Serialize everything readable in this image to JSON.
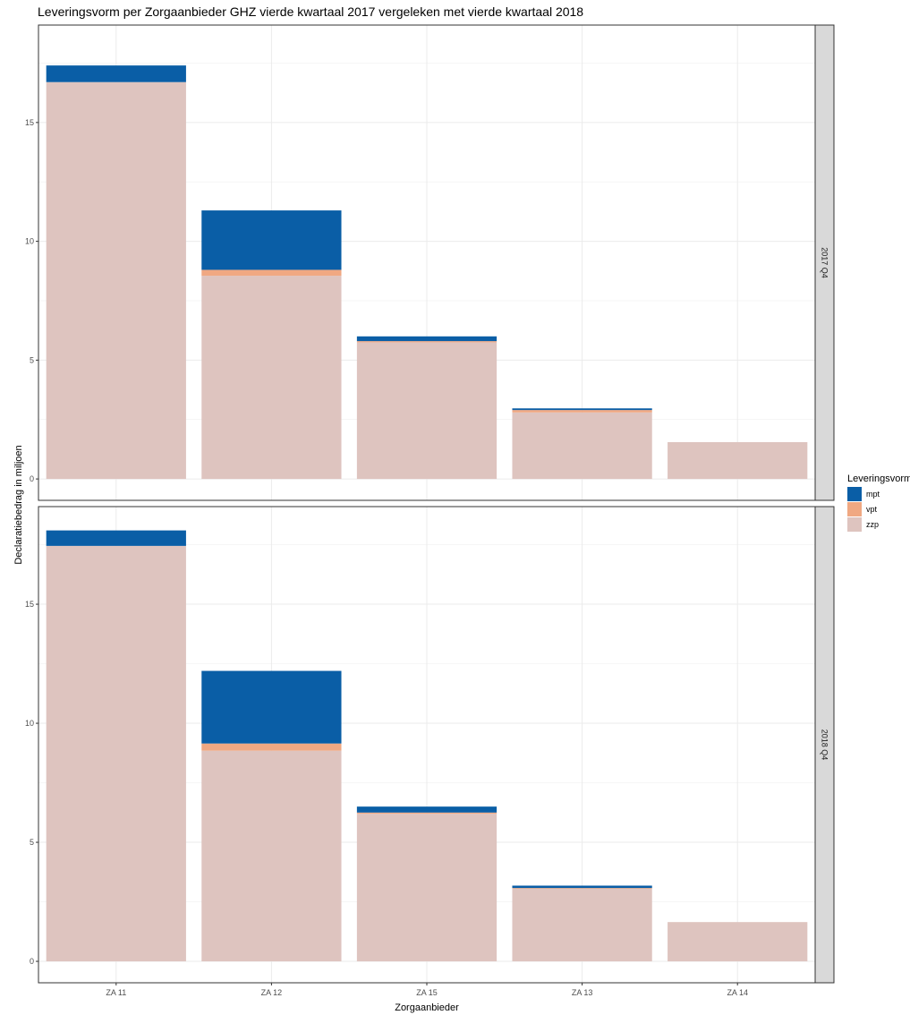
{
  "chart_data": {
    "type": "bar",
    "stacked": true,
    "title": "Leveringsvorm per Zorgaanbieder GHZ vierde kwartaal 2017 vergeleken met vierde kwartaal 2018",
    "xlabel": "Zorgaanbieder",
    "ylabel": "Declaratiebedrag in miljoen",
    "categories": [
      "ZA 11",
      "ZA 12",
      "ZA 15",
      "ZA 13",
      "ZA 14"
    ],
    "yticks": [
      0,
      5,
      10,
      15
    ],
    "ylim": [
      -0.9,
      19.1
    ],
    "grid": true,
    "legend": {
      "title": "Leveringsvorm",
      "position": "right",
      "items": [
        {
          "label": "mpt",
          "color": "#0a5ea6"
        },
        {
          "label": "vpt",
          "color": "#f0a882"
        },
        {
          "label": "zzp",
          "color": "#dec4bf"
        }
      ]
    },
    "panels": [
      {
        "label": "2017 Q4",
        "series": [
          {
            "name": "zzp",
            "color": "#dec4bf",
            "values": [
              16.7,
              8.55,
              5.75,
              2.8,
              1.55
            ]
          },
          {
            "name": "vpt",
            "color": "#f0a882",
            "values": [
              0.0,
              0.25,
              0.05,
              0.1,
              0.0
            ]
          },
          {
            "name": "mpt",
            "color": "#0a5ea6",
            "values": [
              0.7,
              2.5,
              0.2,
              0.07,
              0.0
            ]
          }
        ]
      },
      {
        "label": "2018 Q4",
        "series": [
          {
            "name": "zzp",
            "color": "#dec4bf",
            "values": [
              17.45,
              8.85,
              6.2,
              3.05,
              1.65
            ]
          },
          {
            "name": "vpt",
            "color": "#f0a882",
            "values": [
              0.0,
              0.3,
              0.05,
              0.03,
              0.0
            ]
          },
          {
            "name": "mpt",
            "color": "#0a5ea6",
            "values": [
              0.65,
              3.05,
              0.25,
              0.1,
              0.0
            ]
          }
        ]
      }
    ]
  }
}
